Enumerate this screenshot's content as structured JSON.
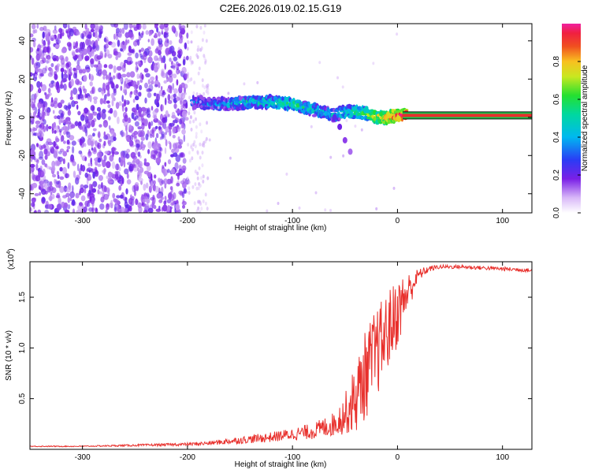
{
  "title": "C2E6.2026.019.02.15.G19",
  "colors": {
    "snr_line": "#e8302c",
    "spectrogram_low": "#7a1fe6",
    "spectrogram_high": "#e8302c",
    "track_center": "#e8302c",
    "track_edge": "#1cc24a"
  },
  "chart_data": [
    {
      "type": "heatmap",
      "xlabel": "Height of straight line (km)",
      "ylabel": "Frequency (Hz)",
      "xlim": [
        -350,
        128
      ],
      "ylim": [
        -50,
        49
      ],
      "x_ticks": [
        -300,
        -200,
        -100,
        0,
        100
      ],
      "y_ticks": [
        -40,
        -20,
        0,
        20,
        40
      ],
      "colorbar": {
        "label": "Normalized spectral amplitude",
        "range": [
          0,
          1
        ],
        "ticks": [
          "0.0",
          "0.2",
          "0.4",
          "0.6",
          "0.8"
        ],
        "colormap": "rainbow"
      },
      "regions": [
        {
          "x_start": -350,
          "x_end": -200,
          "description_value": "noise",
          "freq_range": [
            -50,
            49
          ],
          "amplitude": 0.1
        },
        {
          "x_start": -200,
          "x_end": -180,
          "freq_range": [
            -50,
            49
          ],
          "amplitude": 0.04
        }
      ],
      "ridge": {
        "x": [
          -195,
          -180,
          -160,
          -140,
          -120,
          -100,
          -80,
          -60,
          -50,
          -40,
          -30,
          -20,
          -10,
          0,
          10,
          50,
          100,
          128
        ],
        "freq": [
          8,
          7,
          7,
          8,
          8,
          7,
          4,
          1,
          3,
          3,
          2,
          0,
          0,
          1,
          1,
          1,
          1,
          1
        ],
        "amplitude": [
          0.3,
          0.35,
          0.4,
          0.45,
          0.5,
          0.55,
          0.45,
          0.4,
          0.5,
          0.55,
          0.6,
          0.7,
          0.85,
          0.9,
          0.95,
          0.95,
          0.95,
          0.95
        ]
      },
      "branch": {
        "x": [
          -60,
          -55,
          -50,
          -45
        ],
        "freq": [
          0,
          -5,
          -12,
          -18
        ]
      }
    },
    {
      "type": "line",
      "xlabel": "Height of straight line (km)",
      "ylabel": "SNR (10 * v/v)",
      "y_multiplier": "(x10",
      "y_multiplier_exp": "4",
      "y_multiplier_close": ")",
      "xlim": [
        -350,
        128
      ],
      "ylim": [
        0,
        1.85
      ],
      "x_ticks": [
        -300,
        -200,
        -100,
        0,
        100
      ],
      "y_ticks": [
        0.5,
        1.0,
        1.5
      ],
      "y_tick_labels": [
        "0.5",
        "1.0",
        "1.5"
      ],
      "series": [
        {
          "x": [
            -350,
            -300,
            -250,
            -200,
            -180,
            -160,
            -140,
            -120,
            -100,
            -80,
            -60,
            -50,
            -40,
            -30,
            -20,
            -10,
            0,
            10,
            20,
            30,
            40,
            50,
            60,
            80,
            100,
            120,
            128
          ],
          "values": [
            0.03,
            0.03,
            0.04,
            0.05,
            0.06,
            0.08,
            0.1,
            0.12,
            0.15,
            0.18,
            0.25,
            0.35,
            0.5,
            0.75,
            0.95,
            1.15,
            1.35,
            1.55,
            1.72,
            1.78,
            1.8,
            1.8,
            1.8,
            1.79,
            1.78,
            1.77,
            1.76
          ],
          "noise": [
            0.005,
            0.005,
            0.01,
            0.015,
            0.02,
            0.03,
            0.04,
            0.05,
            0.06,
            0.08,
            0.12,
            0.2,
            0.35,
            0.45,
            0.45,
            0.4,
            0.35,
            0.2,
            0.06,
            0.03,
            0.02,
            0.02,
            0.02,
            0.02,
            0.02,
            0.02,
            0.02
          ]
        }
      ]
    }
  ]
}
